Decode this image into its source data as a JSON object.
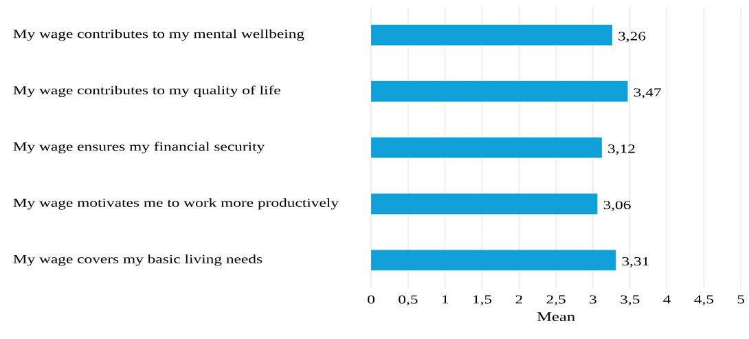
{
  "chart_data": {
    "type": "bar",
    "orientation": "horizontal",
    "xlabel": "Mean",
    "categories": [
      "My wage contributes to my mental wellbeing",
      "My wage contributes to my quality of life",
      "My wage ensures my financial security",
      "My wage motivates me to work more productively",
      "My wage covers my basic living needs"
    ],
    "values": [
      3.26,
      3.47,
      3.12,
      3.06,
      3.31
    ],
    "value_labels": [
      "3,26",
      "3,47",
      "3,12",
      "3,06",
      "3,31"
    ],
    "color": "#119fd7",
    "xlim": [
      0,
      5
    ],
    "xticks": [
      {
        "value": 0,
        "label": "0"
      },
      {
        "value": 0.5,
        "label": "0,5"
      },
      {
        "value": 1,
        "label": "1"
      },
      {
        "value": 1.5,
        "label": "1,5"
      },
      {
        "value": 2,
        "label": "2"
      },
      {
        "value": 2.5,
        "label": "2,5"
      },
      {
        "value": 3,
        "label": "3"
      },
      {
        "value": 3.5,
        "label": "3,5"
      },
      {
        "value": 4,
        "label": "4"
      },
      {
        "value": 4.5,
        "label": "4,5"
      },
      {
        "value": 5,
        "label": "5"
      }
    ],
    "grid": "x"
  }
}
